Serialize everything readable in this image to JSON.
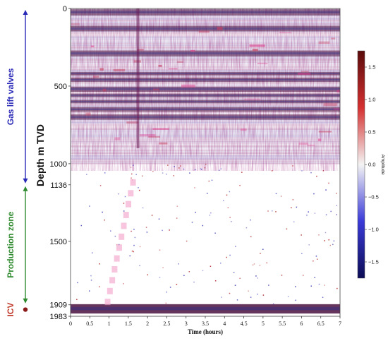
{
  "chart_data": {
    "type": "heatmap",
    "title": "",
    "xlabel": "Time (hours)",
    "ylabel": "Depth m TVD",
    "xlim": [
      0,
      7
    ],
    "ylim": [
      1983,
      0
    ],
    "x_ticks": [
      0,
      0.5,
      1,
      1.5,
      2,
      2.5,
      3,
      3.5,
      4,
      4.5,
      5,
      5.5,
      6,
      6.5,
      7
    ],
    "y_ticks": [
      0,
      500,
      1000,
      1136,
      1500,
      1909,
      1983
    ],
    "colorbar": {
      "label": "Amplitude",
      "colormap": "seismic",
      "range": [
        -1.75,
        1.75
      ],
      "ticks": [
        1.5,
        1.0,
        0.5,
        0.0,
        -0.5,
        -1.0,
        -1.5
      ],
      "tick_labels": [
        "1.5",
        "1.0",
        "0.5",
        "0.0",
        "−0.5",
        "−1.0",
        "−1.5"
      ]
    },
    "strong_bands_depth": [
      25,
      130,
      290,
      420,
      460,
      520,
      560,
      600,
      650,
      700,
      1935
    ],
    "vertical_event": {
      "time_hours": 1.75,
      "depth_range": [
        0,
        900
      ]
    },
    "zones": [
      {
        "name": "Gas lift valves",
        "color": "#2a2ab8",
        "depth_range": [
          0,
          1136
        ]
      },
      {
        "name": "Production zone",
        "color": "#2f8a2f",
        "depth_range": [
          1136,
          1909
        ]
      },
      {
        "name": "ICV",
        "color": "#c0392b",
        "depth": 1940
      }
    ]
  }
}
